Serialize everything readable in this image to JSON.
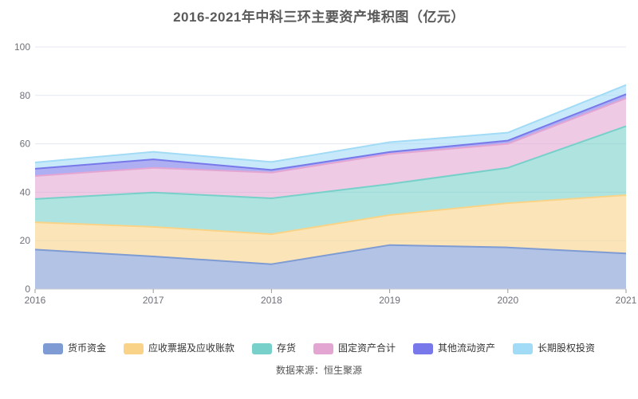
{
  "chart": {
    "title": "2016-2021年中科三环主要资产堆积图（亿元）",
    "source": "数据来源：恒生聚源"
  },
  "chart_data": {
    "type": "area",
    "stacked": true,
    "title": "2016-2021年中科三环主要资产堆积图（亿元）",
    "xlabel": "",
    "ylabel": "",
    "categories": [
      "2016",
      "2017",
      "2018",
      "2019",
      "2020",
      "2021"
    ],
    "series": [
      {
        "name": "货币资金",
        "color": "#7E9BD3",
        "values": [
          16.3,
          13.5,
          10.3,
          18.2,
          17.2,
          14.7
        ]
      },
      {
        "name": "应收票据及应收账款",
        "color": "#F9D488",
        "values": [
          11.3,
          12.2,
          12.4,
          12.4,
          18.3,
          24.1
        ]
      },
      {
        "name": "存货",
        "color": "#78D0CA",
        "values": [
          9.6,
          14.2,
          14.8,
          12.8,
          14.6,
          28.5
        ]
      },
      {
        "name": "固定资产合计",
        "color": "#E3A6D2",
        "values": [
          9.5,
          10.2,
          10.6,
          12.4,
          9.9,
          11.5
        ]
      },
      {
        "name": "其他流动资产",
        "color": "#7878EB",
        "values": [
          3.0,
          3.5,
          1.1,
          0.8,
          1.3,
          1.7
        ]
      },
      {
        "name": "长期股权投资",
        "color": "#A2DBF6",
        "values": [
          2.6,
          3.1,
          3.3,
          4.1,
          3.3,
          3.8
        ]
      }
    ],
    "ylim": [
      0,
      100
    ],
    "yticks": [
      0,
      20,
      40,
      60,
      80,
      100
    ],
    "grid": true,
    "legend_position": "bottom",
    "area_opacity": 0.6,
    "colors": {
      "grid_line": "#E4E7F1",
      "axis_line": "#CCCCCC",
      "tick": "#999999",
      "axis_label": "#6E7079"
    }
  }
}
